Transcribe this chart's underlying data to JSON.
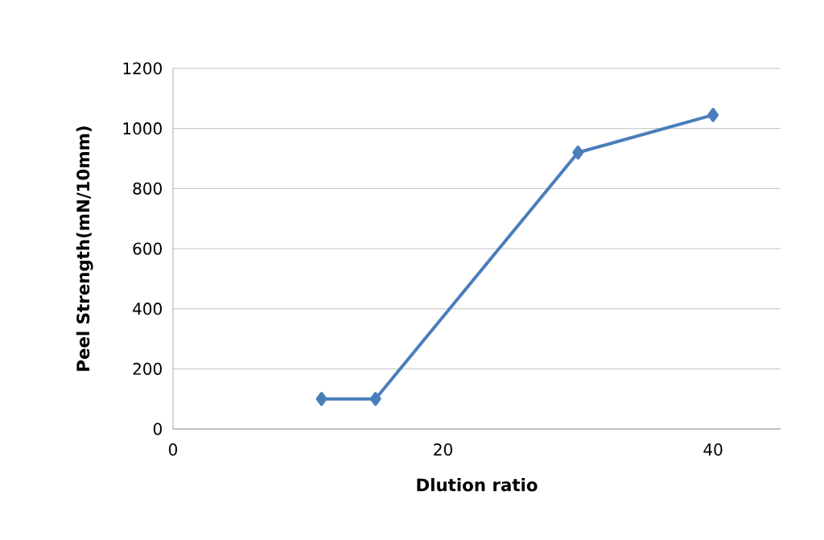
{
  "chart_data": {
    "type": "line",
    "xlabel": "Dlution ratio",
    "ylabel": "Peel Strength(mN/10mm)",
    "x": [
      11,
      15,
      30,
      40
    ],
    "series": [
      {
        "color": "#4a7ebb",
        "values": [
          100,
          100,
          920,
          1045
        ]
      }
    ],
    "xlim": [
      0,
      45
    ],
    "xticks": [
      0,
      20,
      40
    ],
    "ylim": [
      0,
      1200
    ],
    "yticks": [
      0,
      200,
      400,
      600,
      800,
      1000,
      1200
    ],
    "grid": "y",
    "marker": "diamond",
    "line_style": "solid"
  }
}
